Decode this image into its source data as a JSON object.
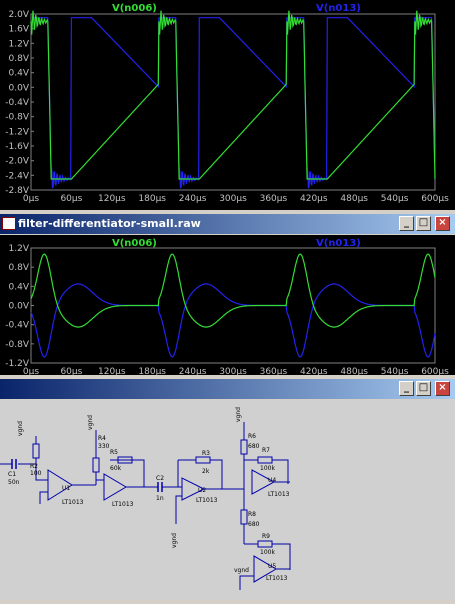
{
  "top_plot": {
    "trace_green_name": "V(n006)",
    "trace_blue_name": "V(n013)",
    "y_ticks": [
      "2.0V",
      "1.6V",
      "1.2V",
      "0.8V",
      "0.4V",
      "0.0V",
      "-0.4V",
      "-0.8V",
      "-1.2V",
      "-1.6V",
      "-2.0V",
      "-2.4V",
      "-2.8V"
    ],
    "x_ticks": [
      "0µs",
      "60µs",
      "120µs",
      "180µs",
      "240µs",
      "300µs",
      "360µs",
      "420µs",
      "480µs",
      "540µs",
      "600µs"
    ]
  },
  "window2": {
    "title": "filter-differentiator-small.raw",
    "min_icon": "minimize-icon",
    "max_icon": "maximize-icon",
    "close_icon": "close-icon"
  },
  "bottom_plot": {
    "trace_green_name": "V(n006)",
    "trace_blue_name": "V(n013)",
    "y_ticks": [
      "1.2V",
      "0.8V",
      "0.4V",
      "0.0V",
      "-0.4V",
      "-0.8V",
      "-1.2V"
    ],
    "x_ticks": [
      "0µs",
      "60µs",
      "120µs",
      "180µs",
      "240µs",
      "300µs",
      "360µs",
      "420µs",
      "480µs",
      "540µs",
      "600µs"
    ]
  },
  "schematic": {
    "labels": {
      "r2": "R2",
      "r2v": "100",
      "c1": "C1",
      "c1v": "50n",
      "u1": "U1",
      "u1p": "LT1013",
      "r4": "R4",
      "r4v": "330",
      "r5": "R5",
      "r5v": "60k",
      "u2_amp": "LT1013",
      "c2": "C2",
      "c2v": "1n",
      "r3": "R3",
      "r3v": "2k",
      "u2": "U2",
      "u2p": "LT1013",
      "r6": "R6",
      "r6v": "680",
      "r7": "R7",
      "r7v": "100k",
      "u4": "U4",
      "u4p": "LT1013",
      "r8": "R8",
      "r8v": "680",
      "r9": "R9",
      "r9v": "100k",
      "u5": "U5",
      "u5p": "LT1013",
      "vgnd": "vgnd"
    }
  },
  "colors": {
    "green": "#33dd33",
    "blue": "#2222ee"
  }
}
